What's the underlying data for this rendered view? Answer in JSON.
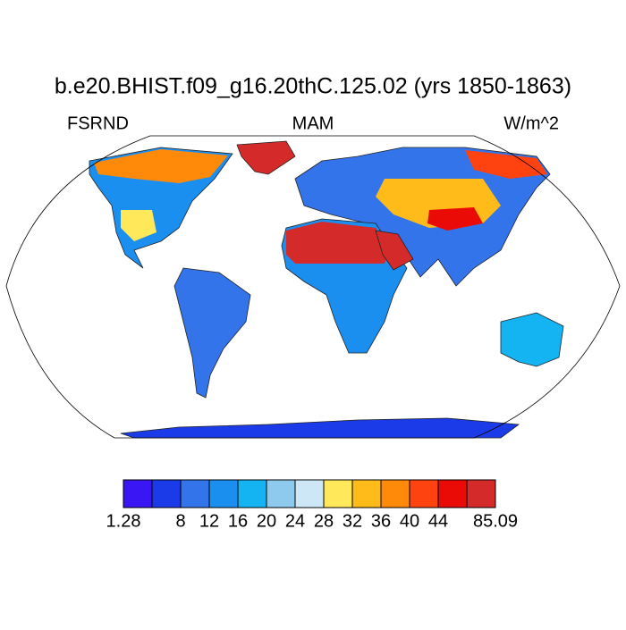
{
  "title": "b.e20.BHIST.f09_g16.20thC.125.02 (yrs 1850-1863)",
  "left_string": "FSRND",
  "center_string": "MAM",
  "right_string": "W/m^2",
  "colorbar": {
    "colors": [
      "#3b16f5",
      "#1c3be8",
      "#3474ea",
      "#1b8ff0",
      "#14b4f2",
      "#8ec9ee",
      "#cde7f7",
      "#ffe95a",
      "#ffbb1a",
      "#ff8a0a",
      "#ff4310",
      "#ea0a06",
      "#d52a2a"
    ],
    "boundaries": [
      1.28,
      null,
      8,
      12,
      16,
      20,
      24,
      28,
      32,
      36,
      40,
      44,
      null,
      85.09
    ]
  }
}
